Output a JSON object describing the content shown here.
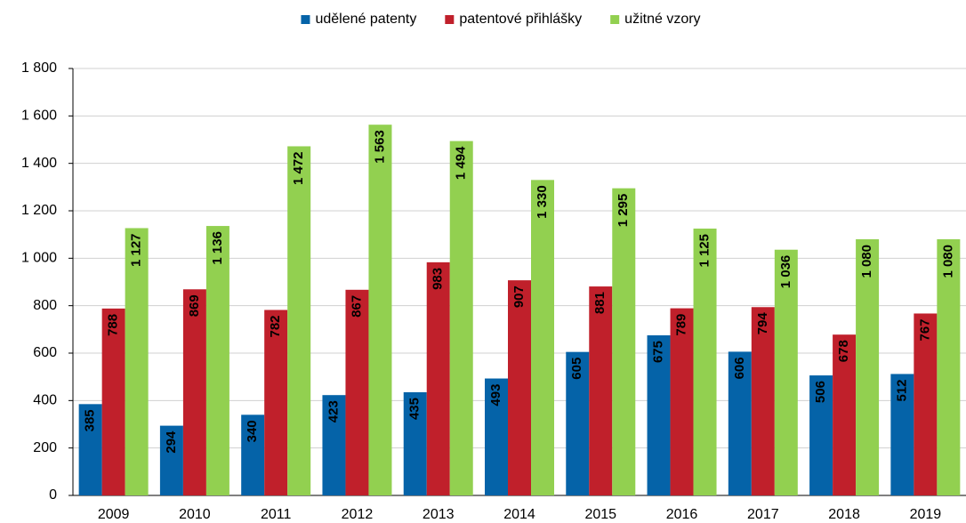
{
  "chart_data": {
    "type": "bar",
    "categories": [
      "2009",
      "2010",
      "2011",
      "2012",
      "2013",
      "2014",
      "2015",
      "2016",
      "2017",
      "2018",
      "2019"
    ],
    "series": [
      {
        "name": "udělené patenty",
        "color": "#0563a8",
        "values": [
          385,
          294,
          340,
          423,
          435,
          493,
          605,
          675,
          606,
          506,
          512
        ]
      },
      {
        "name": "patentové přihlášky",
        "color": "#c0202b",
        "values": [
          788,
          869,
          782,
          867,
          983,
          907,
          881,
          789,
          794,
          678,
          767
        ]
      },
      {
        "name": "užitné vzory",
        "color": "#92d050",
        "values": [
          1127,
          1136,
          1472,
          1563,
          1494,
          1330,
          1295,
          1125,
          1036,
          1080,
          1080
        ],
        "value_labels": [
          "1 127",
          "1 136",
          "1 472",
          "1 563",
          "1 494",
          "1 330",
          "1 295",
          "1 125",
          "1 036",
          "1 080",
          "1 080"
        ]
      }
    ],
    "ylim": [
      0,
      1800
    ],
    "yticks": [
      0,
      200,
      400,
      600,
      800,
      {
        "value": 1000,
        "label": "1 000"
      },
      {
        "value": 1200,
        "label": "1 200"
      },
      {
        "value": 1400,
        "label": "1 400"
      },
      {
        "value": 1600,
        "label": "1 600"
      },
      {
        "value": 1800,
        "label": "1 800"
      }
    ],
    "grid": true,
    "legend": "top"
  }
}
